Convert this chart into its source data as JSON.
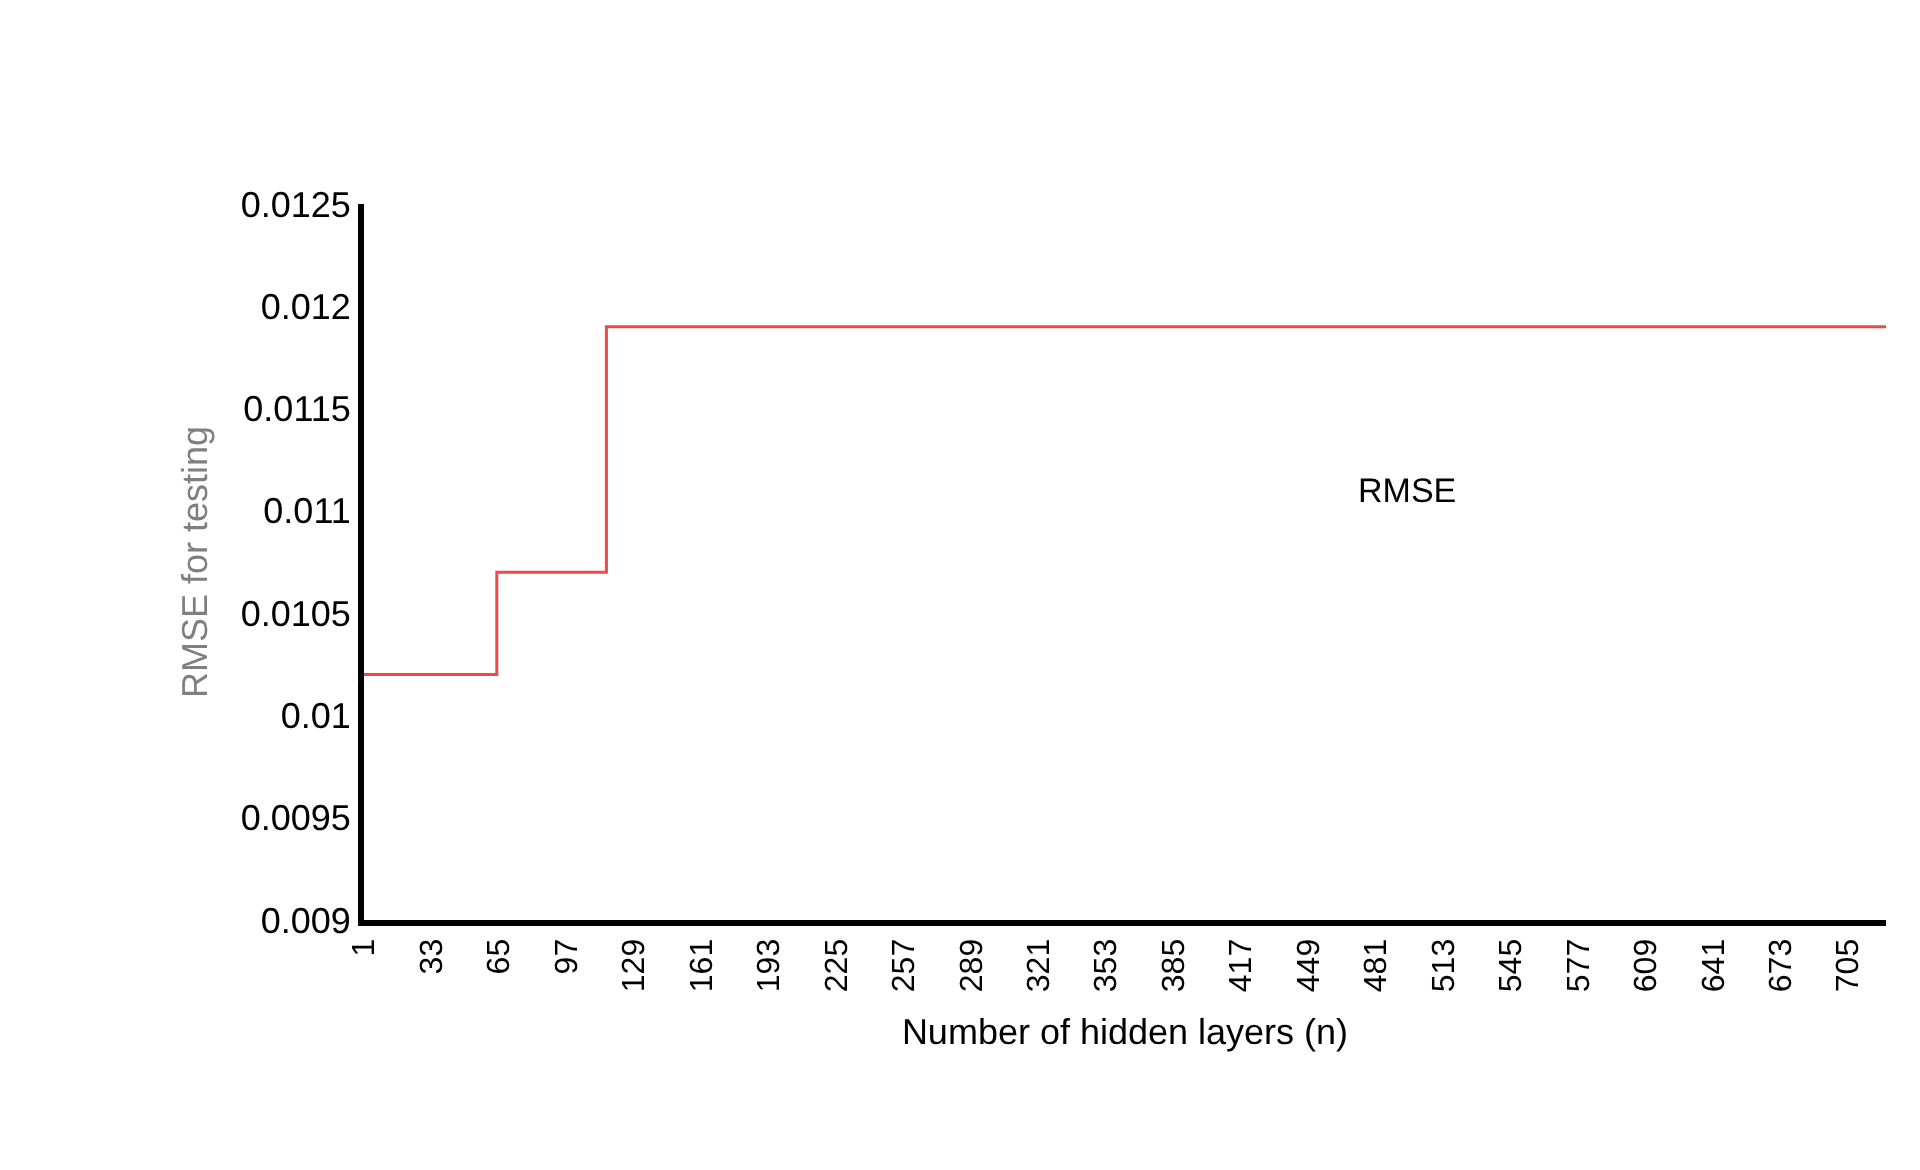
{
  "chart_data": {
    "type": "step",
    "xlabel": "Number of hidden layers (n)",
    "ylabel": "RMSE for testing",
    "series": [
      {
        "name": "RMSE",
        "color": "#f04848",
        "x": [
          1,
          64,
          116,
          723
        ],
        "values": [
          0.0102,
          0.0107,
          0.0119,
          0.0119
        ]
      }
    ],
    "xlim": [
      1,
      723
    ],
    "xticks": [
      1,
      33,
      65,
      97,
      129,
      161,
      193,
      225,
      257,
      289,
      321,
      353,
      385,
      417,
      449,
      481,
      513,
      545,
      577,
      609,
      641,
      673,
      705
    ],
    "ylim": [
      0.009,
      0.0125
    ],
    "yticks": [
      0.009,
      0.0095,
      0.01,
      0.0105,
      0.011,
      0.0115,
      0.012,
      0.0125
    ],
    "legend": false,
    "marker": "none",
    "line_style": "solid"
  }
}
